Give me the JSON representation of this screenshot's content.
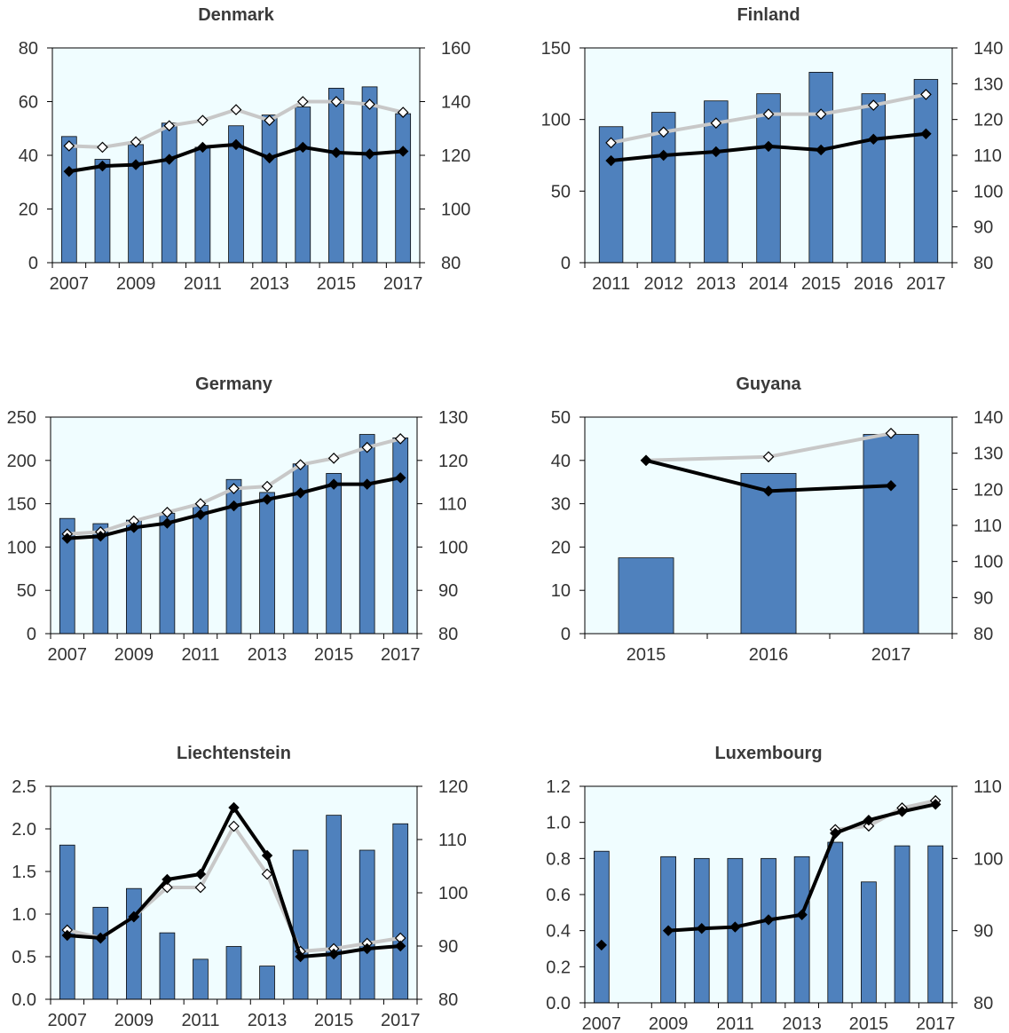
{
  "colors": {
    "plot_bg": "#F0FDFF",
    "bar": "#4F81BD",
    "bar_edge": "#0a0a0a",
    "line_dark": "#000000",
    "line_light": "#C8C8C8"
  },
  "chart_data": [
    {
      "type": "bar",
      "title": "Denmark",
      "x": [
        2007,
        2008,
        2009,
        2010,
        2011,
        2012,
        2013,
        2014,
        2015,
        2016,
        2017
      ],
      "x_tick_labels": [
        "2007",
        "2009",
        "2011",
        "2013",
        "2015",
        "2017"
      ],
      "y_left": {
        "lim": [
          0,
          80
        ],
        "ticks": [
          "0",
          "20",
          "40",
          "60",
          "80"
        ]
      },
      "y_right": {
        "lim": [
          80,
          160
        ],
        "ticks": [
          "80",
          "100",
          "120",
          "140",
          "160"
        ]
      },
      "bars": [
        47,
        38.5,
        44,
        52,
        43,
        51,
        55,
        58,
        65,
        65.5,
        55.5
      ],
      "series": [
        {
          "style": "dark",
          "axis": "right",
          "values": [
            114,
            116,
            116.5,
            118.5,
            123,
            124,
            119,
            123,
            121,
            120.5,
            121.5
          ]
        },
        {
          "style": "light",
          "axis": "right",
          "values": [
            123.5,
            123,
            125,
            131,
            133,
            137,
            133,
            140,
            140,
            139,
            136
          ]
        }
      ]
    },
    {
      "type": "bar",
      "title": "Finland",
      "x": [
        2011,
        2012,
        2013,
        2014,
        2015,
        2016,
        2017
      ],
      "x_tick_labels": [
        "2011",
        "2012",
        "2013",
        "2014",
        "2015",
        "2016",
        "2017"
      ],
      "y_left": {
        "lim": [
          0,
          150
        ],
        "ticks": [
          "0",
          "50",
          "100",
          "150"
        ]
      },
      "y_right": {
        "lim": [
          80,
          140
        ],
        "ticks": [
          "80",
          "90",
          "100",
          "110",
          "120",
          "130",
          "140"
        ]
      },
      "bars": [
        95,
        105,
        113,
        118,
        133,
        118,
        128
      ],
      "series": [
        {
          "style": "dark",
          "axis": "right",
          "values": [
            108.5,
            110,
            111,
            112.5,
            111.5,
            114.5,
            116
          ]
        },
        {
          "style": "light",
          "axis": "right",
          "values": [
            113.5,
            116.5,
            119,
            121.5,
            121.5,
            124,
            127
          ]
        }
      ]
    },
    {
      "type": "bar",
      "title": "Germany",
      "x": [
        2007,
        2008,
        2009,
        2010,
        2011,
        2012,
        2013,
        2014,
        2015,
        2016,
        2017
      ],
      "x_tick_labels": [
        "2007",
        "2009",
        "2011",
        "2013",
        "2015",
        "2017"
      ],
      "y_left": {
        "lim": [
          0,
          250
        ],
        "ticks": [
          "0",
          "50",
          "100",
          "150",
          "200",
          "250"
        ]
      },
      "y_right": {
        "lim": [
          80,
          130
        ],
        "ticks": [
          "80",
          "90",
          "100",
          "110",
          "120",
          "130"
        ]
      },
      "bars": [
        133,
        127,
        131,
        139,
        148,
        178,
        163,
        196,
        185,
        230,
        226
      ],
      "series": [
        {
          "style": "dark",
          "axis": "right",
          "values": [
            102,
            102.5,
            104.5,
            105.5,
            107.5,
            109.5,
            111,
            112.5,
            114.5,
            114.5,
            116
          ]
        },
        {
          "style": "light",
          "axis": "right",
          "values": [
            103,
            103.5,
            106,
            108,
            110,
            113.5,
            114,
            119,
            120.5,
            123,
            125
          ]
        }
      ]
    },
    {
      "type": "bar",
      "title": "Guyana",
      "x": [
        2015,
        2016,
        2017
      ],
      "x_tick_labels": [
        "2015",
        "2016",
        "2017"
      ],
      "y_left": {
        "lim": [
          0,
          50
        ],
        "ticks": [
          "0",
          "10",
          "20",
          "30",
          "40",
          "50"
        ]
      },
      "y_right": {
        "lim": [
          80,
          140
        ],
        "ticks": [
          "80",
          "90",
          "100",
          "110",
          "120",
          "130",
          "140"
        ]
      },
      "bars": [
        17.5,
        37,
        46
      ],
      "series": [
        {
          "style": "dark",
          "axis": "right",
          "values": [
            128,
            119.5,
            121
          ]
        },
        {
          "style": "light",
          "axis": "right",
          "values": [
            128,
            129,
            135.5
          ]
        }
      ]
    },
    {
      "type": "bar",
      "title": "Liechtenstein",
      "x": [
        2007,
        2008,
        2009,
        2010,
        2011,
        2012,
        2013,
        2014,
        2015,
        2016,
        2017
      ],
      "x_tick_labels": [
        "2007",
        "2009",
        "2011",
        "2013",
        "2015",
        "2017"
      ],
      "y_left": {
        "lim": [
          0,
          2.5
        ],
        "ticks": [
          "0.0",
          "0.5",
          "1.0",
          "1.5",
          "2.0",
          "2.5"
        ]
      },
      "y_right": {
        "lim": [
          80,
          120
        ],
        "ticks": [
          "80",
          "90",
          "100",
          "110",
          "120"
        ]
      },
      "bars": [
        1.81,
        1.08,
        1.3,
        0.78,
        0.47,
        0.62,
        0.39,
        1.75,
        2.16,
        1.75,
        2.06
      ],
      "series": [
        {
          "style": "dark",
          "axis": "right",
          "values": [
            92,
            91.5,
            95.5,
            102.5,
            103.5,
            116,
            107,
            88,
            88.5,
            89.5,
            90
          ]
        },
        {
          "style": "light",
          "axis": "right",
          "values": [
            93,
            91.5,
            95.5,
            101,
            101,
            112.5,
            103.5,
            89,
            89.5,
            90.5,
            91.5
          ]
        }
      ]
    },
    {
      "type": "bar",
      "title": "Luxembourg",
      "x": [
        2007,
        2008,
        2009,
        2010,
        2011,
        2012,
        2013,
        2014,
        2015,
        2016,
        2017
      ],
      "x_tick_labels": [
        "2007",
        "2009",
        "2011",
        "2013",
        "2015",
        "2017"
      ],
      "y_left": {
        "lim": [
          0,
          1.2
        ],
        "ticks": [
          "0.0",
          "0.2",
          "0.4",
          "0.6",
          "0.8",
          "1.0",
          "1.2"
        ]
      },
      "y_right": {
        "lim": [
          80,
          110
        ],
        "ticks": [
          "80",
          "90",
          "100",
          "110"
        ]
      },
      "bars": [
        0.84,
        0,
        0.81,
        0.8,
        0.8,
        0.8,
        0.81,
        0.89,
        0.67,
        0.87,
        0.87
      ],
      "series": [
        {
          "style": "dark",
          "axis": "right",
          "values": [
            88,
            null,
            90,
            90.3,
            90.5,
            91.5,
            92.2,
            103.5,
            105.3,
            106.5,
            107.5
          ]
        },
        {
          "style": "light",
          "axis": "right",
          "values": [
            null,
            null,
            null,
            null,
            null,
            null,
            null,
            104,
            104.5,
            107,
            108
          ]
        }
      ]
    }
  ]
}
